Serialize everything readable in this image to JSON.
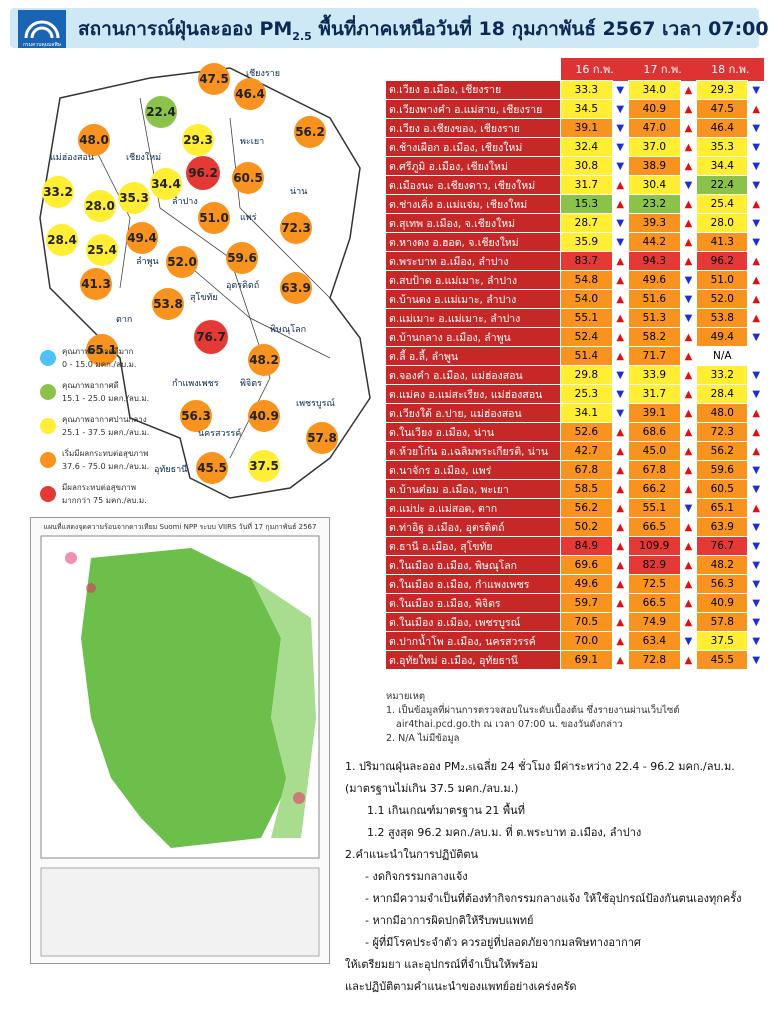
{
  "header": {
    "title_pre": "สถานการณ์ฝุ่นละออง PM",
    "title_sub": "2.5",
    "title_post": " พื้นที่ภาคเหนือวันที่ 18 กุมภาพันธ์ 2567 เวลา 07:00 น.",
    "logo_text": "กรมควบคุมมลพิษ"
  },
  "colors": {
    "header_bg": "#cfe8f6",
    "red": "#c62828",
    "orange": "#f7931e",
    "yellow": "#ffee33",
    "green": "#8bc34a",
    "blue": "#4fc3f7"
  },
  "table": {
    "headers": [
      "16 ก.พ.",
      "17 ก.พ.",
      "18 ก.พ."
    ],
    "rows": [
      {
        "loc": "ต.เวียง อ.เมือง, เชียงราย",
        "v": [
          "33.3",
          "34.0",
          "29.3"
        ],
        "t": [
          "d",
          "u",
          "d"
        ],
        "c": [
          "y",
          "y",
          "y"
        ]
      },
      {
        "loc": "ต.เวียงพางคำ อ.แม่สาย, เชียงราย",
        "v": [
          "34.5",
          "40.9",
          "47.5"
        ],
        "t": [
          "d",
          "u",
          "u"
        ],
        "c": [
          "y",
          "o",
          "o"
        ]
      },
      {
        "loc": "ต.เวียง อ.เชียงของ, เชียงราย",
        "v": [
          "39.1",
          "47.0",
          "46.4"
        ],
        "t": [
          "d",
          "u",
          "d"
        ],
        "c": [
          "o",
          "o",
          "o"
        ]
      },
      {
        "loc": "ต.ช้างเผือก อ.เมือง, เชียงใหม่",
        "v": [
          "32.4",
          "37.0",
          "35.3"
        ],
        "t": [
          "d",
          "u",
          "d"
        ],
        "c": [
          "y",
          "y",
          "y"
        ]
      },
      {
        "loc": "ต.ศรีภูมิ อ.เมือง, เชียงใหม่",
        "v": [
          "30.8",
          "38.9",
          "34.4"
        ],
        "t": [
          "d",
          "u",
          "d"
        ],
        "c": [
          "y",
          "o",
          "y"
        ]
      },
      {
        "loc": "ต.เมืองนะ อ.เชียงดาว, เชียงใหม่",
        "v": [
          "31.7",
          "30.4",
          "22.4"
        ],
        "t": [
          "u",
          "d",
          "d"
        ],
        "c": [
          "y",
          "y",
          "g"
        ]
      },
      {
        "loc": "ต.ช่างเคิ่ง อ.แม่แจ่ม, เชียงใหม่",
        "v": [
          "15.3",
          "23.2",
          "25.4"
        ],
        "t": [
          "u",
          "u",
          "u"
        ],
        "c": [
          "g",
          "g",
          "y"
        ]
      },
      {
        "loc": "ต.สุเทพ  อ.เมือง, จ.เชียงใหม่",
        "v": [
          "28.7",
          "39.3",
          "28.0"
        ],
        "t": [
          "d",
          "u",
          "d"
        ],
        "c": [
          "y",
          "o",
          "y"
        ]
      },
      {
        "loc": "ต.หางดง อ.ฮอด, จ.เชียงใหม่",
        "v": [
          "35.9",
          "44.2",
          "41.3"
        ],
        "t": [
          "d",
          "u",
          "d"
        ],
        "c": [
          "y",
          "o",
          "o"
        ]
      },
      {
        "loc": "ต.พระบาท อ.เมือง, ลำปาง",
        "v": [
          "83.7",
          "94.3",
          "96.2"
        ],
        "t": [
          "u",
          "u",
          "u"
        ],
        "c": [
          "r",
          "r",
          "r"
        ]
      },
      {
        "loc": "ต.สบป้าด อ.แม่เมาะ, ลำปาง",
        "v": [
          "54.8",
          "49.6",
          "51.0"
        ],
        "t": [
          "u",
          "d",
          "u"
        ],
        "c": [
          "o",
          "o",
          "o"
        ]
      },
      {
        "loc": "ต.บ้านดง อ.แม่เมาะ, ลำปาง",
        "v": [
          "54.0",
          "51.6",
          "52.0"
        ],
        "t": [
          "u",
          "d",
          "u"
        ],
        "c": [
          "o",
          "o",
          "o"
        ]
      },
      {
        "loc": "ต.แม่เมาะ อ.แม่เมาะ, ลำปาง",
        "v": [
          "55.1",
          "51.3",
          "53.8"
        ],
        "t": [
          "u",
          "d",
          "u"
        ],
        "c": [
          "o",
          "o",
          "o"
        ]
      },
      {
        "loc": "ต.บ้านกลาง อ.เมือง, ลำพูน",
        "v": [
          "52.4",
          "58.2",
          "49.4"
        ],
        "t": [
          "u",
          "u",
          "d"
        ],
        "c": [
          "o",
          "o",
          "o"
        ]
      },
      {
        "loc": "ต.ลี้ อ.ลี้, ลำพูน",
        "v": [
          "51.4",
          "71.7",
          "N/A"
        ],
        "t": [
          "u",
          "u",
          ""
        ],
        "c": [
          "o",
          "o",
          "n"
        ]
      },
      {
        "loc": "ต.จองคำ อ.เมือง, แม่ฮ่องสอน",
        "v": [
          "29.8",
          "33.9",
          "33.2"
        ],
        "t": [
          "d",
          "u",
          "d"
        ],
        "c": [
          "y",
          "y",
          "y"
        ]
      },
      {
        "loc": "ต.แม่คง อ.แม่สะเรียง, แม่ฮ่องสอน",
        "v": [
          "25.3",
          "31.7",
          "28.4"
        ],
        "t": [
          "d",
          "u",
          "d"
        ],
        "c": [
          "y",
          "y",
          "y"
        ]
      },
      {
        "loc": "ต.เวียงใต้ อ.ปาย, แม่ฮ่องสอน",
        "v": [
          "34.1",
          "39.1",
          "48.0"
        ],
        "t": [
          "d",
          "u",
          "u"
        ],
        "c": [
          "y",
          "o",
          "o"
        ]
      },
      {
        "loc": "ต.ในเวียง อ.เมือง, น่าน",
        "v": [
          "52.6",
          "68.6",
          "72.3"
        ],
        "t": [
          "u",
          "u",
          "u"
        ],
        "c": [
          "o",
          "o",
          "o"
        ]
      },
      {
        "loc": "ต.ห้วยโก๋น อ.เฉลิมพระเกียรติ, น่าน",
        "v": [
          "42.7",
          "45.0",
          "56.2"
        ],
        "t": [
          "u",
          "u",
          "u"
        ],
        "c": [
          "o",
          "o",
          "o"
        ]
      },
      {
        "loc": "ต.นาจักร อ.เมือง, แพร่",
        "v": [
          "67.8",
          "67.8",
          "59.6"
        ],
        "t": [
          "u",
          "u",
          "d"
        ],
        "c": [
          "o",
          "o",
          "o"
        ]
      },
      {
        "loc": "ต.บ้านต๋อม อ.เมือง, พะเยา",
        "v": [
          "58.5",
          "66.2",
          "60.5"
        ],
        "t": [
          "u",
          "u",
          "d"
        ],
        "c": [
          "o",
          "o",
          "o"
        ]
      },
      {
        "loc": "ต.แม่ปะ อ.แม่สอด, ตาก",
        "v": [
          "56.2",
          "55.1",
          "65.1"
        ],
        "t": [
          "u",
          "d",
          "u"
        ],
        "c": [
          "o",
          "o",
          "o"
        ]
      },
      {
        "loc": "ต.ท่าอิฐ อ.เมือง, อุตรดิตถ์",
        "v": [
          "50.2",
          "66.5",
          "63.9"
        ],
        "t": [
          "u",
          "u",
          "d"
        ],
        "c": [
          "o",
          "o",
          "o"
        ]
      },
      {
        "loc": "ต.ธานี อ.เมือง, สุโขทัย",
        "v": [
          "84.9",
          "109.9",
          "76.7"
        ],
        "t": [
          "u",
          "u",
          "d"
        ],
        "c": [
          "r",
          "r",
          "r"
        ]
      },
      {
        "loc": "ต.ในเมือง อ.เมือง, พิษณุโลก",
        "v": [
          "69.6",
          "82.9",
          "48.2"
        ],
        "t": [
          "u",
          "u",
          "d"
        ],
        "c": [
          "o",
          "r",
          "o"
        ]
      },
      {
        "loc": "ต.ในเมือง อ.เมือง, กำแพงเพชร",
        "v": [
          "49.6",
          "72.5",
          "56.3"
        ],
        "t": [
          "u",
          "u",
          "d"
        ],
        "c": [
          "o",
          "o",
          "o"
        ]
      },
      {
        "loc": "ต.ในเมือง อ.เมือง, พิจิตร",
        "v": [
          "59.7",
          "66.5",
          "40.9"
        ],
        "t": [
          "u",
          "u",
          "d"
        ],
        "c": [
          "o",
          "o",
          "o"
        ]
      },
      {
        "loc": "ต.ในเมือง อ.เมือง, เพชรบูรณ์",
        "v": [
          "70.5",
          "74.9",
          "57.8"
        ],
        "t": [
          "u",
          "u",
          "d"
        ],
        "c": [
          "o",
          "o",
          "o"
        ]
      },
      {
        "loc": "ต.ปากน้ำโพ อ.เมือง, นครสวรรค์",
        "v": [
          "70.0",
          "63.4",
          "37.5"
        ],
        "t": [
          "u",
          "d",
          "d"
        ],
        "c": [
          "o",
          "o",
          "y"
        ]
      },
      {
        "loc": "ต.อุทัยใหม่ อ.เมือง, อุทัยธานี",
        "v": [
          "69.1",
          "72.8",
          "45.5"
        ],
        "t": [
          "u",
          "u",
          "d"
        ],
        "c": [
          "o",
          "o",
          "o"
        ]
      }
    ]
  },
  "notes": {
    "title": "หมายเหตุ",
    "n1": "1. เป็นข้อมูลที่ผ่านการตรวจสอบในระดับเบื้องต้น ซึ่งรายงานผ่านเว็บไซต์",
    "n1b": "air4thai.pcd.go.th  ณ เวลา 07:00 น. ของวันดังกล่าว",
    "n2": "2. N/A  ไม่มีข้อมูล"
  },
  "summary": {
    "s1": "1. ปริมาณฝุ่นละออง PM₂.₅เฉลี่ย 24 ชั่วโมง มีค่าระหว่าง 22.4 - 96.2 มคก./ลบ.ม.",
    "s1b": "(มาตรฐานไม่เกิน 37.5 มคก./ลบ.ม.)",
    "s11": "1.1 เกินเกณฑ์มาตรฐาน 21 พื้นที่",
    "s12": "1.2 สูงสุด 96.2  มคก./ลบ.ม. ที่ ต.พระบาท อ.เมือง, ลำปาง",
    "s2": "2.คำแนะนำในการปฏิบัติตน",
    "b1": "-  งดกิจกรรมกลางแจ้ง",
    "b2": "-  หากมีความจำเป็นที่ต้องทำกิจกรรมกลางแจ้ง ให้ใช้อุปกรณ์ป้องกันตนเองทุกครั้ง",
    "b3": "-  หากมีอาการผิดปกติให้รีบพบแพทย์",
    "b4": "-  ผู้ที่มีโรคประจำตัว ควรอยู่ที่ปลอดภัยจากมลพิษทางอากาศ",
    "s3": "ให้เตรียมยา  และอุปกรณ์ที่จำเป็นให้พร้อม",
    "s4": "และปฏิบัติตามคำแนะนำของแพทย์อย่างเคร่งครัด"
  },
  "legend": [
    {
      "t1": "คุณภาพอากาศดีมาก",
      "t2": "0 - 15.0 มคก./ลบ.ม.",
      "color": "#4fc3f7"
    },
    {
      "t1": "คุณภาพอากาศดี",
      "t2": "15.1 - 25.0 มคก./ลบ.ม.",
      "color": "#8bc34a"
    },
    {
      "t1": "คุณภาพอากาศปานกลาง",
      "t2": "25.1 - 37.5 มคก./ลบ.ม.",
      "color": "#ffee33"
    },
    {
      "t1": "เริ่มมีผลกระทบต่อสุขภาพ",
      "t2": "37.6 - 75.0 มคก./ลบ.ม.",
      "color": "#f7931e"
    },
    {
      "t1": "มีผลกระทบต่อสุขภาพ",
      "t2": "มากกว่า 75 มคก./ลบ.ม.",
      "color": "#e53935"
    }
  ],
  "map_bubbles": [
    {
      "v": "47.5",
      "c": "o"
    },
    {
      "v": "46.4",
      "c": "o"
    },
    {
      "v": "22.4",
      "c": "g"
    },
    {
      "v": "29.3",
      "c": "y"
    },
    {
      "v": "48.0",
      "c": "o"
    },
    {
      "v": "56.2",
      "c": "o"
    },
    {
      "v": "96.2",
      "c": "r"
    },
    {
      "v": "60.5",
      "c": "o"
    },
    {
      "v": "33.2",
      "c": "y"
    },
    {
      "v": "28.0",
      "c": "y"
    },
    {
      "v": "35.3",
      "c": "y"
    },
    {
      "v": "34.4",
      "c": "y"
    },
    {
      "v": "51.0",
      "c": "o"
    },
    {
      "v": "72.3",
      "c": "o"
    },
    {
      "v": "28.4",
      "c": "y"
    },
    {
      "v": "25.4",
      "c": "y"
    },
    {
      "v": "49.4",
      "c": "o"
    },
    {
      "v": "52.0",
      "c": "o"
    },
    {
      "v": "59.6",
      "c": "o"
    },
    {
      "v": "41.3",
      "c": "o"
    },
    {
      "v": "53.8",
      "c": "o"
    },
    {
      "v": "63.9",
      "c": "o"
    },
    {
      "v": "76.7",
      "c": "r"
    },
    {
      "v": "65.1",
      "c": "o"
    },
    {
      "v": "48.2",
      "c": "o"
    },
    {
      "v": "56.3",
      "c": "o"
    },
    {
      "v": "40.9",
      "c": "o"
    },
    {
      "v": "57.8",
      "c": "o"
    },
    {
      "v": "37.5",
      "c": "y"
    },
    {
      "v": "45.5",
      "c": "o"
    }
  ],
  "map_labels": {
    "chiangrai": "เชียงราย",
    "maehongson": "แม่ฮ่องสอน",
    "chiangmai": "เชียงใหม่",
    "phayao": "พะเยา",
    "nan": "น่าน",
    "lampang": "ลำปาง",
    "phrae": "แพร่",
    "lamphun": "ลำพูน",
    "uttaradit": "อุตรดิตถ์",
    "sukhothai": "สุโขทัย",
    "tak": "ตาก",
    "phitsanulok": "พิษณุโลก",
    "kamphaeng": "กำแพงเพชร",
    "phichit": "พิจิตร",
    "phetchabun": "เพชรบูรณ์",
    "nakhonsawan": "นครสวรรค์",
    "uthai": "อุทัยธานี"
  },
  "satmap": {
    "title": "แผนที่แสดงจุดความร้อนจากดาวเทียม Suomi NPP ระบบ VIIRS  วันที่ 17 กุมภาพันธ์ 2567"
  }
}
